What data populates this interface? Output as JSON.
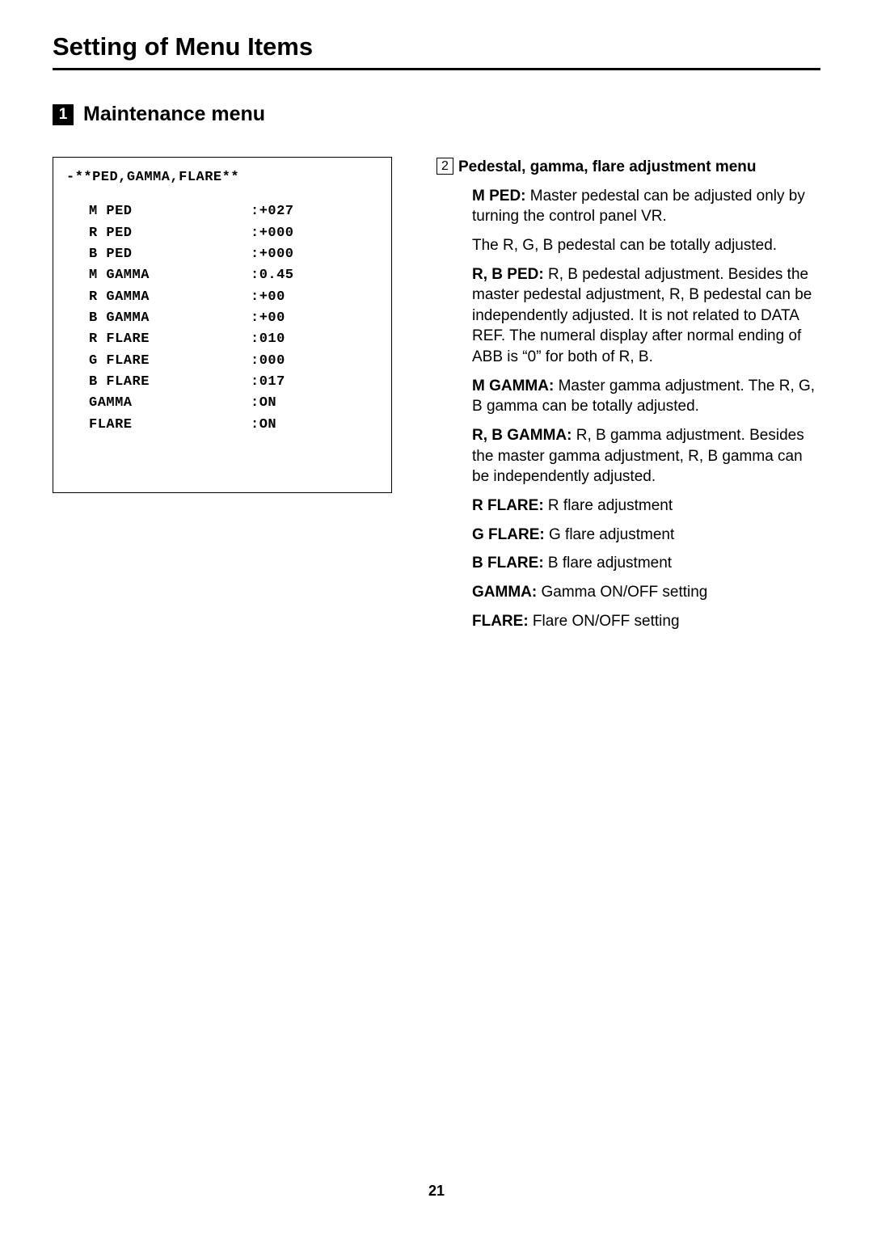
{
  "title": "Setting of Menu Items",
  "section": {
    "number": "1",
    "label": "Maintenance menu"
  },
  "menu_box": {
    "header": "-**PED,GAMMA,FLARE**",
    "rows": [
      {
        "label": "M PED",
        "value": ":+027"
      },
      {
        "label": "R PED",
        "value": ":+000"
      },
      {
        "label": "B PED",
        "value": ":+000"
      },
      {
        "label": "M GAMMA",
        "value": ":0.45"
      },
      {
        "label": "R GAMMA",
        "value": ":+00"
      },
      {
        "label": "B GAMMA",
        "value": ":+00"
      },
      {
        "label": "R FLARE",
        "value": ":010"
      },
      {
        "label": "G FLARE",
        "value": ":000"
      },
      {
        "label": "B FLARE",
        "value": ":017"
      },
      {
        "label": "GAMMA",
        "value": ":ON"
      },
      {
        "label": "FLARE",
        "value": ":ON"
      }
    ]
  },
  "sub": {
    "number": "2",
    "title": "Pedestal, gamma, flare adjustment menu"
  },
  "descriptions": [
    {
      "term": "M PED:",
      "text": " Master pedestal can be adjusted only by turning the control panel VR."
    },
    {
      "term": "",
      "text": "The R, G, B pedestal can be totally adjusted."
    },
    {
      "term": "R, B PED:",
      "text": " R, B pedestal adjustment. Besides the master pedestal adjustment, R, B pedestal can be independently adjusted. It is not related to DATA REF. The numeral display after normal ending of ABB is “0” for both of R, B."
    },
    {
      "term": "M GAMMA:",
      "text": " Master gamma adjustment. The R, G, B gamma can be totally adjusted."
    },
    {
      "term": "R, B GAMMA:",
      "text": " R, B gamma adjustment. Besides the master gamma adjustment, R, B gamma can be independently adjusted."
    },
    {
      "term": "R FLARE:",
      "text": " R flare adjustment"
    },
    {
      "term": "G FLARE:",
      "text": " G flare adjustment"
    },
    {
      "term": "B FLARE:",
      "text": " B flare adjustment"
    },
    {
      "term": "GAMMA:",
      "text": " Gamma ON/OFF setting"
    },
    {
      "term": "FLARE:",
      "text": " Flare ON/OFF setting"
    }
  ],
  "page_number": "21"
}
